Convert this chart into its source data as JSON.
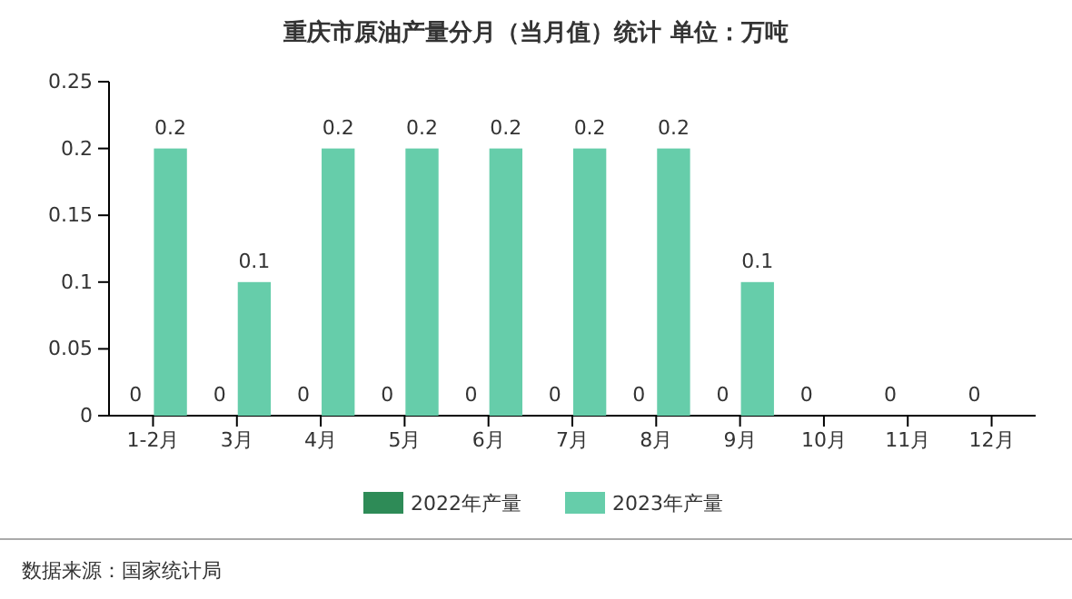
{
  "chart_data": {
    "type": "bar",
    "title": "重庆市原油产量分月（当月值）统计 单位：万吨",
    "categories": [
      "1-2月",
      "3月",
      "4月",
      "5月",
      "6月",
      "7月",
      "8月",
      "9月",
      "10月",
      "11月",
      "12月"
    ],
    "series": [
      {
        "name": "2022年产量",
        "color": "#2e8b57",
        "values": [
          0,
          0,
          0,
          0,
          0,
          0,
          0,
          0,
          0,
          0,
          0
        ]
      },
      {
        "name": "2023年产量",
        "color": "#66cdaa",
        "values": [
          0.2,
          0.1,
          0.2,
          0.2,
          0.2,
          0.2,
          0.2,
          0.1,
          null,
          null,
          null
        ]
      }
    ],
    "ylim": [
      0,
      0.25
    ],
    "yticks": [
      0,
      0.05,
      0.1,
      0.15,
      0.2,
      0.25
    ],
    "data_labels": true,
    "legend": "bottom",
    "annotations": [
      "数据来源：国家统计局"
    ]
  }
}
